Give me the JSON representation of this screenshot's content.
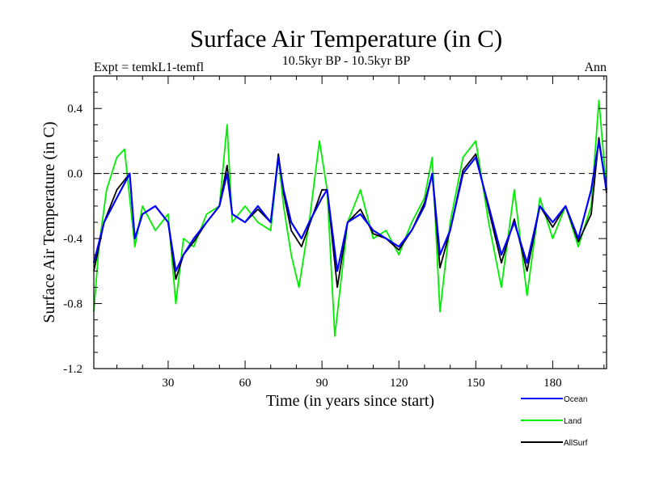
{
  "header": {
    "title": "Surface Air Temperature (in C)",
    "subtitle_left": "Expt = temkL1-temfl",
    "subtitle_center": "10.5kyr BP - 10.5kyr BP",
    "subtitle_right": "Ann"
  },
  "chart_data": {
    "type": "line",
    "title": "Surface Air Temperature (in C)",
    "xlabel": "Time (in years since start)",
    "ylabel": "Surface Air Temperature (in C)",
    "xlim": [
      1,
      201
    ],
    "ylim": [
      -1.2,
      0.6
    ],
    "xticks": [
      30,
      60,
      90,
      120,
      150,
      180
    ],
    "xtick_labels": [
      "30",
      "60",
      "90",
      "120",
      "150",
      "180"
    ],
    "yticks": [
      -1.2,
      -0.8,
      -0.4,
      0.0,
      0.4
    ],
    "ytick_labels": [
      "-1.2",
      "-0.8",
      "-0.4",
      "0.0",
      "0.4"
    ],
    "reference_line": 0.0,
    "grid": false,
    "legend_position": "bottom-right, below plot",
    "series": [
      {
        "name": "Ocean",
        "color": "#0000ff",
        "x": [
          1,
          5,
          10,
          15,
          17,
          20,
          25,
          30,
          33,
          36,
          40,
          45,
          50,
          53,
          55,
          60,
          65,
          70,
          73,
          75,
          78,
          82,
          85,
          90,
          92,
          96,
          100,
          105,
          110,
          115,
          120,
          125,
          130,
          133,
          136,
          140,
          145,
          150,
          155,
          160,
          165,
          170,
          175,
          180,
          185,
          190,
          195,
          198,
          201
        ],
        "values": [
          -0.55,
          -0.3,
          -0.15,
          0.0,
          -0.4,
          -0.25,
          -0.2,
          -0.3,
          -0.6,
          -0.5,
          -0.4,
          -0.3,
          -0.2,
          0.0,
          -0.25,
          -0.3,
          -0.2,
          -0.3,
          0.1,
          -0.1,
          -0.3,
          -0.4,
          -0.3,
          -0.15,
          -0.1,
          -0.6,
          -0.3,
          -0.25,
          -0.35,
          -0.4,
          -0.45,
          -0.35,
          -0.2,
          0.0,
          -0.5,
          -0.35,
          0.0,
          0.1,
          -0.2,
          -0.5,
          -0.3,
          -0.55,
          -0.2,
          -0.3,
          -0.2,
          -0.4,
          -0.1,
          0.2,
          -0.1
        ]
      },
      {
        "name": "Land",
        "color": "#00ee00",
        "x": [
          1,
          3,
          6,
          10,
          13,
          17,
          20,
          25,
          30,
          33,
          36,
          40,
          45,
          50,
          53,
          55,
          60,
          65,
          70,
          73,
          75,
          78,
          81,
          85,
          89,
          92,
          95,
          100,
          105,
          110,
          115,
          120,
          125,
          130,
          133,
          136,
          140,
          145,
          150,
          155,
          160,
          165,
          170,
          175,
          180,
          185,
          190,
          195,
          198,
          201
        ],
        "values": [
          -0.85,
          -0.45,
          -0.1,
          0.1,
          0.15,
          -0.45,
          -0.2,
          -0.35,
          -0.25,
          -0.8,
          -0.4,
          -0.45,
          -0.25,
          -0.2,
          0.3,
          -0.3,
          -0.2,
          -0.3,
          -0.35,
          0.1,
          -0.2,
          -0.5,
          -0.7,
          -0.3,
          0.2,
          -0.1,
          -1.0,
          -0.3,
          -0.1,
          -0.4,
          -0.35,
          -0.5,
          -0.3,
          -0.15,
          0.1,
          -0.85,
          -0.3,
          0.1,
          0.2,
          -0.3,
          -0.7,
          -0.1,
          -0.75,
          -0.15,
          -0.4,
          -0.2,
          -0.45,
          -0.2,
          0.45,
          -0.1
        ]
      },
      {
        "name": "AllSurf",
        "color": "#000000",
        "x": [
          1,
          5,
          10,
          15,
          17,
          20,
          25,
          30,
          33,
          36,
          40,
          45,
          50,
          53,
          55,
          60,
          65,
          70,
          73,
          75,
          78,
          82,
          85,
          90,
          92,
          96,
          100,
          105,
          110,
          115,
          120,
          125,
          130,
          133,
          136,
          140,
          145,
          150,
          155,
          160,
          165,
          170,
          175,
          180,
          185,
          190,
          195,
          198,
          201
        ],
        "values": [
          -0.6,
          -0.3,
          -0.1,
          0.0,
          -0.4,
          -0.25,
          -0.2,
          -0.3,
          -0.65,
          -0.5,
          -0.42,
          -0.3,
          -0.2,
          0.05,
          -0.25,
          -0.3,
          -0.22,
          -0.3,
          0.12,
          -0.12,
          -0.35,
          -0.45,
          -0.32,
          -0.1,
          -0.1,
          -0.7,
          -0.3,
          -0.22,
          -0.37,
          -0.4,
          -0.47,
          -0.35,
          -0.18,
          0.0,
          -0.58,
          -0.35,
          0.02,
          0.12,
          -0.22,
          -0.55,
          -0.28,
          -0.6,
          -0.2,
          -0.33,
          -0.2,
          -0.42,
          -0.25,
          0.22,
          -0.12
        ]
      }
    ]
  }
}
